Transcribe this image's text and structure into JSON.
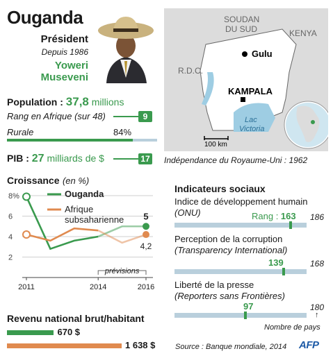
{
  "title": "Ouganda",
  "president": {
    "label": "Président",
    "since": "Depuis 1986",
    "name_first": "Yoweri",
    "name_last": "Museveni"
  },
  "map": {
    "labels": {
      "sudan": "SOUDAN DU SUD",
      "kenya": "KENYA",
      "rdc": "R.D.C.",
      "gulu": "Gulu",
      "kampala": "KAMPALA",
      "lake": "Lac Victoria",
      "lake_line1": "Lac",
      "lake_line2": "Victoria",
      "scale": "100 km"
    },
    "independence": "Indépendance du Royaume-Uni : 1962"
  },
  "population": {
    "label": "Population :",
    "value": "37,8",
    "unit": "millions",
    "rank_label": "Rang en Afrique (sur 48)",
    "rank": "9",
    "rural_label": "Rurale",
    "rural_value": "84%",
    "rural_fraction": 0.84
  },
  "pib": {
    "label": "PIB :",
    "value": "27",
    "unit": "milliards de $",
    "rank": "17"
  },
  "growth": {
    "title": "Croissance",
    "unit": "(en %)",
    "legend": {
      "uganda": "Ouganda",
      "africa_line1": "Afrique",
      "africa_line2": "subsaharienne"
    },
    "forecast": "prévisions",
    "end_labels": {
      "uganda": "5",
      "africa": "4,2"
    }
  },
  "chart_data": {
    "type": "line",
    "title": "Croissance (en %)",
    "x": [
      2011,
      2012,
      2013,
      2014,
      2015,
      2016
    ],
    "x_ticks": [
      "2011",
      "2014",
      "2016"
    ],
    "y_ticks": [
      "2",
      "4",
      "6",
      "8%"
    ],
    "ylim": [
      0,
      8
    ],
    "series": [
      {
        "name": "Ouganda",
        "color": "#3a9a4e",
        "values": [
          7.9,
          2.8,
          3.6,
          4.0,
          5.0,
          5.0
        ]
      },
      {
        "name": "Afrique subsaharienne",
        "color": "#e08a4f",
        "values": [
          4.2,
          3.6,
          4.8,
          4.6,
          3.4,
          4.2
        ]
      }
    ],
    "forecast_from": 2014,
    "grid": true
  },
  "income": {
    "title": "Revenu national brut/habitant",
    "uganda_value": "670 $",
    "africa_value": "1 638 $",
    "uganda_amount": 670,
    "africa_amount": 1638,
    "uganda_color": "#3a9a4e",
    "africa_color": "#e08a4f"
  },
  "social": {
    "title": "Indicateurs sociaux",
    "items": [
      {
        "line1": "Indice de développement humain",
        "line2": "(ONU)",
        "prefix": "Rang : ",
        "rank": "163",
        "rank_number": 163,
        "total": "186",
        "total_number": 186
      },
      {
        "line1": "Perception de la corruption",
        "line2": "(Transparency International)",
        "prefix": "",
        "rank": "139",
        "rank_number": 139,
        "total": "168",
        "total_number": 168
      },
      {
        "line1": "Liberté de la presse",
        "line2": "(Reporters sans Frontières)",
        "prefix": "",
        "rank": "97",
        "rank_number": 97,
        "total": "180",
        "total_number": 180
      }
    ],
    "footnote": "Nombre de pays"
  },
  "source": "Source : Banque mondiale, 2014",
  "logo": "AFP",
  "colors": {
    "green": "#3a9a4e",
    "orange": "#e08a4f",
    "bar_bg": "#b9cfdc",
    "water": "#9ecde3"
  }
}
